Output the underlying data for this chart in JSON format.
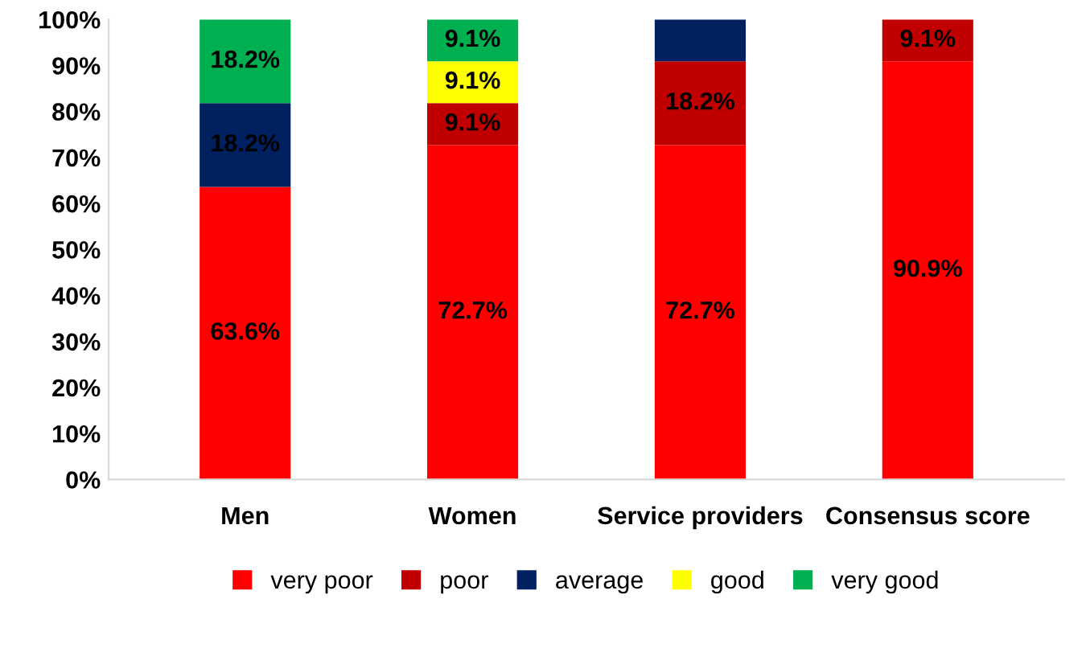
{
  "chart_data": {
    "type": "bar",
    "stacked": true,
    "categories": [
      "Men",
      "Women",
      "Service providers",
      "Consensus score"
    ],
    "series": [
      {
        "name": "very poor",
        "color": "#ff0000",
        "values": [
          63.6,
          72.7,
          72.7,
          90.9
        ],
        "value_labels": [
          "63.6%",
          "72.7%",
          "72.7%",
          "90.9%"
        ]
      },
      {
        "name": "poor",
        "color": "#c00000",
        "values": [
          null,
          9.1,
          18.2,
          9.1
        ],
        "value_labels": [
          null,
          "9.1%",
          "18.2%",
          "9.1%"
        ]
      },
      {
        "name": "average",
        "color": "#002060",
        "values": [
          18.2,
          null,
          9.1,
          null
        ],
        "value_labels": [
          "18.2%",
          null,
          null,
          null
        ]
      },
      {
        "name": "good",
        "color": "#ffff00",
        "values": [
          null,
          9.1,
          null,
          null
        ],
        "value_labels": [
          null,
          "9.1%",
          null,
          null
        ]
      },
      {
        "name": "very good",
        "color": "#00b050",
        "values": [
          18.2,
          9.1,
          null,
          null
        ],
        "value_labels": [
          "18.2%",
          "9.1%",
          null,
          null
        ]
      }
    ],
    "ylim": [
      0,
      100
    ],
    "yticks": [
      {
        "value": 0,
        "label": "0%"
      },
      {
        "value": 10,
        "label": "10%"
      },
      {
        "value": 20,
        "label": "20%"
      },
      {
        "value": 30,
        "label": "30%"
      },
      {
        "value": 40,
        "label": "40%"
      },
      {
        "value": 50,
        "label": "50%"
      },
      {
        "value": 60,
        "label": "60%"
      },
      {
        "value": 70,
        "label": "70%"
      },
      {
        "value": 80,
        "label": "80%"
      },
      {
        "value": 90,
        "label": "90%"
      },
      {
        "value": 100,
        "label": "100%"
      }
    ],
    "grid": false,
    "legend": "bottom"
  }
}
